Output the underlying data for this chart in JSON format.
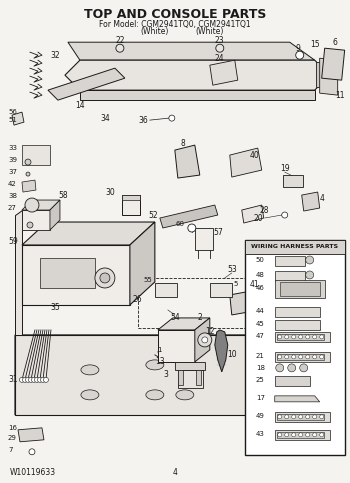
{
  "title": "TOP AND CONSOLE PARTS",
  "subtitle_line1": "For Model: CGM2941TQ0, CGM2941TQ1",
  "subtitle_line2_a": "(White)",
  "subtitle_line2_b": "(White)",
  "footer_left": "W10119633",
  "footer_center": "4",
  "bg_color": "#f5f3ef",
  "line_color": "#1a1a1a",
  "title_fontsize": 9,
  "subtitle_fontsize": 5.5,
  "footer_fontsize": 5.5,
  "label_fontsize": 5.5,
  "fig_width": 3.5,
  "fig_height": 4.83,
  "dpi": 100,
  "wiring_parts": [
    50,
    48,
    46,
    44,
    45,
    47,
    21,
    18,
    25,
    17,
    49,
    43
  ]
}
